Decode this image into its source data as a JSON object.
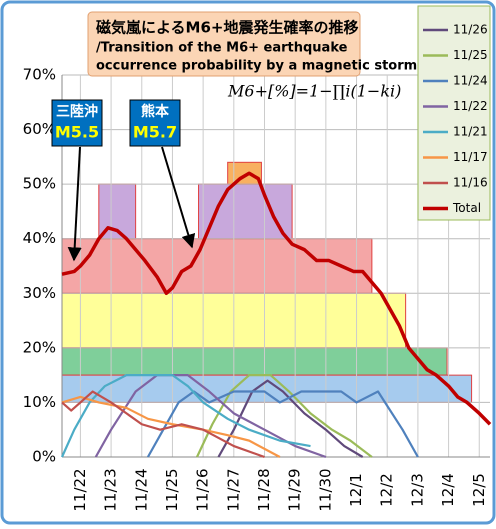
{
  "chart_data": {
    "type": "line",
    "title": "磁気嵐によるM6+地震発生確率の推移",
    "subtitle": [
      "/Transition of the M6+ earthquake",
      "occurrence probability by a magnetic storm."
    ],
    "formula": "M6+[%]=1−∏i(1−ki)",
    "annotations": [
      {
        "place": "三陸沖",
        "magnitude": "M5.5"
      },
      {
        "place": "熊本",
        "magnitude": "M5.7"
      }
    ],
    "xlim": [
      21.4,
      35.35
    ],
    "xticks": [
      {
        "value": 22,
        "label": "11/22"
      },
      {
        "value": 23,
        "label": "11/23"
      },
      {
        "value": 24,
        "label": "11/24"
      },
      {
        "value": 25,
        "label": "11/25"
      },
      {
        "value": 26,
        "label": "11/26"
      },
      {
        "value": 27,
        "label": "11/27"
      },
      {
        "value": 28,
        "label": "11/28"
      },
      {
        "value": 29,
        "label": "11/29"
      },
      {
        "value": 30,
        "label": "11/30"
      },
      {
        "value": 31,
        "label": "12/1"
      },
      {
        "value": 32,
        "label": "12/2"
      },
      {
        "value": 33,
        "label": "12/3"
      },
      {
        "value": 34,
        "label": "12/4"
      },
      {
        "value": 35,
        "label": "12/5"
      }
    ],
    "ylim": [
      0,
      70
    ],
    "yticks": [
      {
        "value": 0,
        "label": "0%"
      },
      {
        "value": 10,
        "label": "10%"
      },
      {
        "value": 20,
        "label": "20%"
      },
      {
        "value": 30,
        "label": "30%"
      },
      {
        "value": 40,
        "label": "40%"
      },
      {
        "value": 50,
        "label": "50%"
      },
      {
        "value": 60,
        "label": "60%"
      },
      {
        "value": 70,
        "label": "70%"
      }
    ],
    "grid": true,
    "legend": "right",
    "bands": [
      {
        "low": 30,
        "high": 40,
        "start": 21.4,
        "end": 31.5,
        "color": "#f4a6a6"
      },
      {
        "low": 20,
        "high": 30,
        "start": 21.4,
        "end": 32.6,
        "color": "#ffff99"
      },
      {
        "low": 15,
        "high": 20,
        "start": 21.4,
        "end": 33.95,
        "color": "#7fcf9a"
      },
      {
        "low": 10,
        "high": 15,
        "start": 21.4,
        "end": 34.75,
        "color": "#a6cbee"
      },
      {
        "low": 40,
        "high": 50,
        "start": 22.6,
        "end": 23.8,
        "color": "#c8a8dc"
      },
      {
        "low": 40,
        "high": 50,
        "start": 25.85,
        "end": 28.9,
        "color": "#c8a8dc"
      },
      {
        "low": 50,
        "high": 54,
        "start": 26.8,
        "end": 27.9,
        "color": "#f8b060"
      }
    ],
    "series": [
      {
        "name": "11/26",
        "color": "#604a7b",
        "x": [
          26.5,
          27,
          27.6,
          28.1,
          28.6,
          29.3,
          30,
          30.6,
          31.2
        ],
        "values": [
          0,
          5,
          12,
          14,
          12,
          8,
          5,
          2,
          0
        ]
      },
      {
        "name": "11/25",
        "color": "#9bbb59",
        "x": [
          25.8,
          26.3,
          26.9,
          27.5,
          28.2,
          28.8,
          29.5,
          30.2,
          30.8,
          31.5
        ],
        "values": [
          0,
          6,
          12,
          15,
          15,
          12,
          8,
          5,
          3,
          0
        ]
      },
      {
        "name": "11/24",
        "color": "#4f81bd",
        "x": [
          24.2,
          24.7,
          25.2,
          25.7,
          26.2,
          27,
          28,
          28.5,
          29.2,
          30.5,
          31,
          31.7,
          32.5,
          33
        ],
        "values": [
          0,
          5,
          10,
          12,
          10,
          12,
          12,
          10,
          12,
          12,
          10,
          12,
          5,
          0
        ]
      },
      {
        "name": "11/22",
        "color": "#8064a2",
        "x": [
          22.5,
          23,
          23.8,
          24.5,
          25.5,
          26.2,
          27,
          28,
          29,
          30
        ],
        "values": [
          0,
          5,
          12,
          15,
          15,
          12,
          8,
          5,
          2,
          0
        ]
      },
      {
        "name": "11/21",
        "color": "#4bacc6",
        "x": [
          21.4,
          21.8,
          22.3,
          22.8,
          23.5,
          25,
          25.5,
          26,
          26.8,
          27.5,
          28.5,
          29.5
        ],
        "values": [
          0,
          5,
          10,
          13,
          15,
          15,
          13,
          10,
          7,
          5,
          3,
          2
        ]
      },
      {
        "name": "11/17",
        "color": "#f79646",
        "x": [
          21.4,
          22,
          22.6,
          23.5,
          24.2,
          25,
          26,
          26.8,
          27.5,
          28.5
        ],
        "values": [
          10,
          11,
          10,
          9,
          7,
          6,
          5,
          4,
          3,
          0
        ]
      },
      {
        "name": "11/16",
        "color": "#c0504d",
        "x": [
          21.4,
          21.7,
          22,
          22.4,
          23,
          24,
          24.6,
          25.3,
          26,
          27,
          28
        ],
        "values": [
          10,
          8.5,
          10,
          12,
          10,
          6,
          5,
          6,
          5,
          2,
          0
        ]
      },
      {
        "name": "Total",
        "color": "#c00000",
        "x": [
          21.4,
          21.8,
          22,
          22.3,
          22.6,
          22.9,
          23.2,
          23.5,
          23.8,
          24.1,
          24.5,
          24.8,
          25,
          25.3,
          25.6,
          25.9,
          26.2,
          26.5,
          26.8,
          27.2,
          27.5,
          27.8,
          28,
          28.3,
          28.6,
          28.9,
          29.3,
          29.7,
          30.1,
          30.5,
          30.9,
          31.2,
          31.5,
          31.8,
          32.1,
          32.4,
          32.7,
          33,
          33.3,
          33.6,
          34,
          34.3,
          34.6,
          35,
          35.35
        ],
        "values": [
          33.5,
          34,
          35,
          37,
          40,
          42,
          41.5,
          40,
          38,
          36,
          33,
          30,
          31,
          34,
          35,
          38,
          42,
          46,
          49,
          51,
          52,
          51,
          48,
          44,
          41,
          39,
          38,
          36,
          36,
          35,
          34,
          34,
          32,
          30,
          27,
          24,
          20,
          18,
          16,
          15,
          13,
          11,
          10,
          8,
          6
        ]
      }
    ]
  }
}
